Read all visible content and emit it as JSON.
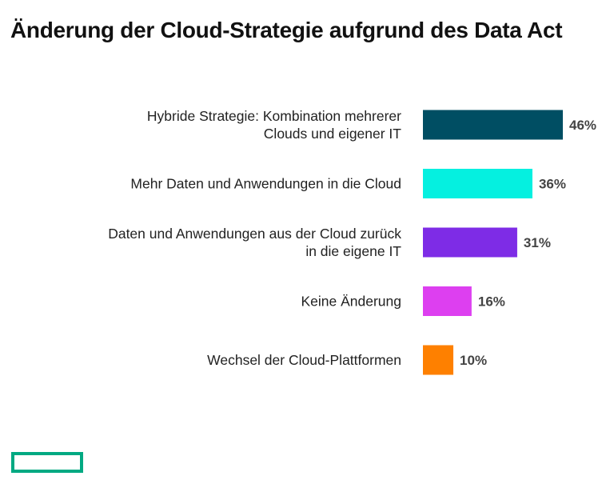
{
  "title": "Änderung der Cloud-Strategie aufgrund des Data Act",
  "chart_data": {
    "type": "bar",
    "orientation": "horizontal",
    "title": "Änderung der Cloud-Strategie aufgrund des Data Act",
    "categories": [
      [
        "Hybride Strategie: Kombination mehrerer",
        "Clouds und eigener IT"
      ],
      [
        "Mehr Daten und Anwendungen in die Cloud"
      ],
      [
        "Daten und Anwendungen aus der Cloud zurück",
        "in die eigene IT"
      ],
      [
        "Keine Änderung"
      ],
      [
        "Wechsel der Cloud-Plattformen"
      ]
    ],
    "values": [
      46,
      36,
      31,
      16,
      10
    ],
    "value_labels": [
      "46%",
      "36%",
      "31%",
      "16%",
      "10%"
    ],
    "colors": [
      "#004e63",
      "#05f0e0",
      "#7e2ce6",
      "#dd3ff0",
      "#fe8000"
    ],
    "unit": "%",
    "xlim": [
      0,
      50
    ],
    "grid": false,
    "legend": "none"
  },
  "logo": {
    "name": "brand-logo",
    "color": "#01a982"
  }
}
